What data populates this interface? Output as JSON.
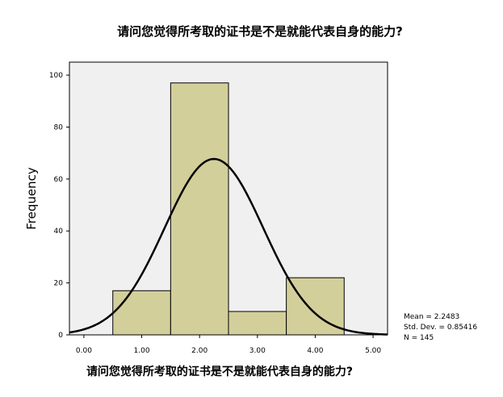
{
  "chart_data": {
    "type": "bar",
    "title": "请问您觉得所考取的证书是不是就能代表自身的能力?",
    "xlabel": "请问您觉得所考取的证书是不是就能代表自身的能力?",
    "ylabel": "Frequency",
    "xlim": [
      -0.25,
      5.25
    ],
    "ylim": [
      0,
      105
    ],
    "x_ticks": [
      "0.00",
      "1.00",
      "2.00",
      "3.00",
      "4.00",
      "5.00"
    ],
    "y_ticks": [
      "0",
      "20",
      "40",
      "60",
      "80",
      "100"
    ],
    "bins": [
      {
        "start": 0.5,
        "end": 1.5,
        "value": 17
      },
      {
        "start": 1.5,
        "end": 2.5,
        "value": 97
      },
      {
        "start": 2.5,
        "end": 3.5,
        "value": 9
      },
      {
        "start": 3.5,
        "end": 4.5,
        "value": 22
      }
    ],
    "normal_curve": {
      "mean": 2.2483,
      "std_dev": 0.85416,
      "n": 145,
      "bin_width": 1
    },
    "stats": [
      "Mean = 2.2483",
      "Std. Dev. = 0.85416",
      "N = 145"
    ],
    "colors": {
      "bar_fill": "#d3cf9b",
      "plot_background": "#f0f0f0",
      "curve": "#000000"
    }
  }
}
